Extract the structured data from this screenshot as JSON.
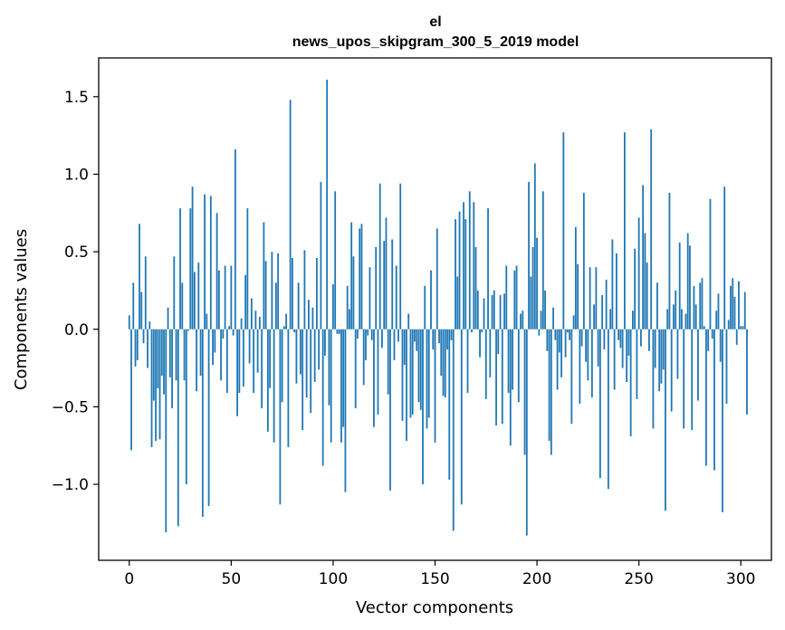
{
  "chart_data": {
    "type": "bar",
    "title": "el",
    "subtitle": "news_upos_skipgram_300_5_2019 model",
    "xlabel": "Vector components",
    "ylabel": "Components values",
    "xlim": [
      -15,
      315
    ],
    "ylim": [
      -1.49,
      1.75
    ],
    "xticks": [
      0,
      50,
      100,
      150,
      200,
      250,
      300
    ],
    "xtick_labels": [
      "0",
      "50",
      "100",
      "150",
      "200",
      "250",
      "300"
    ],
    "yticks": [
      -1.0,
      -0.5,
      0.0,
      0.5,
      1.0,
      1.5
    ],
    "ytick_labels": [
      "−1.0",
      "−0.5",
      "0.0",
      "0.5",
      "1.0",
      "1.5"
    ],
    "bar_color": "#1f77b4",
    "values": [
      0.09,
      -0.78,
      0.3,
      -0.24,
      -0.2,
      0.68,
      0.24,
      -0.09,
      0.47,
      -0.25,
      0.05,
      -0.76,
      -0.46,
      -0.72,
      -0.38,
      -0.71,
      -0.3,
      -0.42,
      -1.31,
      0.14,
      -0.31,
      -0.51,
      0.47,
      -0.33,
      -1.27,
      0.78,
      0.3,
      -0.33,
      -1.0,
      -0.01,
      0.78,
      0.92,
      0.37,
      -0.4,
      0.43,
      -0.3,
      -1.21,
      0.87,
      0.1,
      -1.14,
      0.86,
      -0.23,
      -0.15,
      0.75,
      0.38,
      -0.33,
      -0.06,
      0.41,
      -0.41,
      0.02,
      0.41,
      -0.04,
      1.16,
      -0.56,
      -0.41,
      0.07,
      -0.37,
      0.35,
      0.78,
      -0.22,
      0.2,
      -0.41,
      0.12,
      -0.28,
      0.08,
      -0.51,
      0.69,
      0.44,
      -0.66,
      -0.38,
      0.5,
      -0.73,
      0.3,
      0.49,
      -1.13,
      -0.47,
      0.02,
      0.1,
      -0.76,
      1.48,
      0.46,
      -0.02,
      -0.35,
      0.3,
      -0.29,
      -0.65,
      0.51,
      -0.44,
      0.19,
      -0.54,
      0.14,
      -0.34,
      0.46,
      -0.26,
      0.95,
      -0.88,
      -0.17,
      1.61,
      -0.49,
      -0.73,
      0.29,
      0.89,
      -0.03,
      -0.03,
      -0.73,
      -0.63,
      -1.05,
      0.28,
      0.13,
      0.69,
      0.47,
      -0.51,
      -0.06,
      0.65,
      0.68,
      -0.36,
      -0.2,
      -0.04,
      0.4,
      -0.07,
      -0.63,
      0.53,
      -0.55,
      0.94,
      -0.12,
      0.57,
      0.72,
      -0.42,
      -1.04,
      0.58,
      -0.2,
      0.41,
      -0.08,
      0.94,
      -0.59,
      -0.23,
      -0.72,
      0.1,
      -0.57,
      -0.55,
      -0.08,
      -0.14,
      -0.47,
      -0.52,
      -1.0,
      0.28,
      -0.64,
      -0.57,
      0.38,
      -0.13,
      -0.73,
      0.65,
      -0.09,
      -0.3,
      -0.43,
      -0.44,
      -0.13,
      -0.97,
      -0.07,
      -1.3,
      0.71,
      0.34,
      0.76,
      -1.13,
      0.82,
      0.71,
      -0.41,
      0.89,
      -0.02,
      0.82,
      0.53,
      0.25,
      -0.18,
      -0.02,
      0.2,
      -0.45,
      0.78,
      -0.31,
      0.22,
      0.25,
      -0.62,
      -0.16,
      0.22,
      -0.61,
      0.23,
      0.41,
      -0.41,
      -0.75,
      -0.39,
      0.38,
      0.41,
      -0.47,
      0.1,
      0.12,
      -0.81,
      -1.33,
      0.95,
      0.34,
      0.53,
      1.07,
      0.59,
      -0.04,
      0.12,
      0.89,
      0.25,
      -0.14,
      -0.72,
      -0.81,
      0.14,
      -0.07,
      -0.39,
      -0.15,
      -0.31,
      1.27,
      -0.18,
      -0.02,
      -0.07,
      -0.61,
      0.09,
      0.66,
      0.42,
      -0.48,
      -0.11,
      0.88,
      -0.21,
      -0.33,
      0.4,
      -0.44,
      0.16,
      0.4,
      -0.24,
      -0.96,
      0.22,
      -0.13,
      0.32,
      -1.03,
      0.13,
      0.58,
      -0.39,
      0.49,
      -0.07,
      -0.12,
      -0.25,
      1.27,
      -0.34,
      -0.17,
      -0.69,
      0.12,
      0.52,
      -0.45,
      0.72,
      -0.11,
      0.93,
      0.62,
      0.43,
      -0.14,
      1.29,
      -0.64,
      -0.25,
      0.3,
      -0.4,
      -0.35,
      -0.26,
      -1.17,
      0.13,
      0.88,
      -0.53,
      0.16,
      0.25,
      -0.32,
      0.56,
      0.13,
      -0.64,
      0.1,
      0.62,
      0.54,
      -0.65,
      0.28,
      0.16,
      -0.46,
      0.3,
      0.33,
      0.02,
      -0.88,
      -0.14,
      0.84,
      -0.06,
      -0.91,
      0.12,
      0.23,
      -0.21,
      -1.18,
      0.92,
      -0.48,
      0.06,
      0.28,
      0.33,
      0.21,
      -0.1,
      0.31,
      0.02,
      0.02,
      0.24,
      -0.55
    ]
  }
}
